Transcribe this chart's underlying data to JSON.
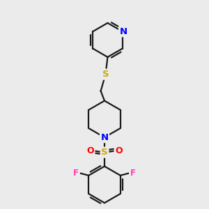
{
  "background_color": "#ebebeb",
  "bond_color": "#1a1a1a",
  "bond_width": 1.6,
  "atom_colors": {
    "N": "#0000ff",
    "S": "#ccaa00",
    "F": "#ff40b0",
    "O": "#ff0000",
    "C": "#1a1a1a"
  },
  "font_size_atom": 8.5,
  "figsize": [
    3.0,
    3.0
  ],
  "dpi": 100,
  "xlim": [
    0,
    10
  ],
  "ylim": [
    0,
    10
  ]
}
